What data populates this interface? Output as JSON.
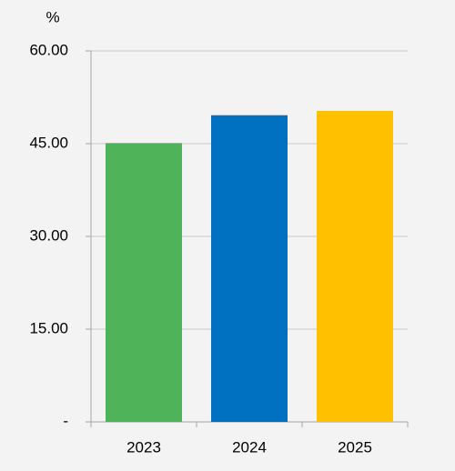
{
  "chart_data": {
    "type": "bar",
    "y_label": "%",
    "categories": [
      "2023",
      "2024",
      "2025"
    ],
    "values": [
      45.1,
      49.6,
      50.3
    ],
    "colors": [
      "#4fb35a",
      "#0070c0",
      "#ffc000"
    ],
    "ylim": [
      0,
      60
    ],
    "yticks": [
      {
        "value": 0,
        "label": "-"
      },
      {
        "value": 15,
        "label": "15.00"
      },
      {
        "value": 30,
        "label": "30.00"
      },
      {
        "value": 45,
        "label": "45.00"
      },
      {
        "value": 60,
        "label": "60.00"
      }
    ],
    "grid": true
  }
}
